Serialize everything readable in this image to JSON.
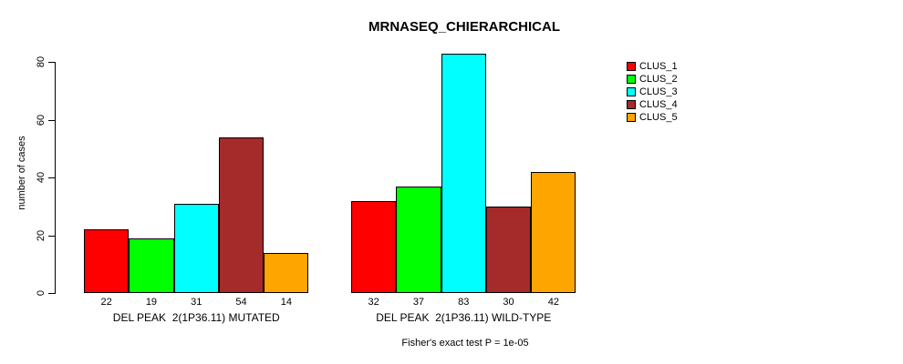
{
  "chart_data": {
    "type": "bar",
    "title": "MRNASEQ_CHIERARCHICAL",
    "ylabel": "number of cases",
    "xlabel": "",
    "ylim": [
      0,
      80
    ],
    "yticks": [
      0,
      20,
      40,
      60,
      80
    ],
    "grid": false,
    "legend_position": "right",
    "bar_border_color": "#000000",
    "background_color": "#ffffff",
    "series": [
      {
        "name": "CLUS_1",
        "color": "#FF0000"
      },
      {
        "name": "CLUS_2",
        "color": "#00FF00"
      },
      {
        "name": "CLUS_3",
        "color": "#00FFFF"
      },
      {
        "name": "CLUS_4",
        "color": "#A52A2A"
      },
      {
        "name": "CLUS_5",
        "color": "#FFA500"
      }
    ],
    "groups": [
      {
        "label": "DEL PEAK  2(1P36.11) MUTATED",
        "values": [
          22,
          19,
          31,
          54,
          14
        ],
        "value_labels": [
          "22",
          "19",
          "31",
          "54",
          "14"
        ]
      },
      {
        "label": "DEL PEAK  2(1P36.11) WILD-TYPE",
        "values": [
          32,
          37,
          83,
          30,
          42
        ],
        "value_labels": [
          "32",
          "37",
          "83",
          "30",
          "42"
        ]
      }
    ],
    "footnote": "Fisher's exact test P = 1e-05"
  }
}
